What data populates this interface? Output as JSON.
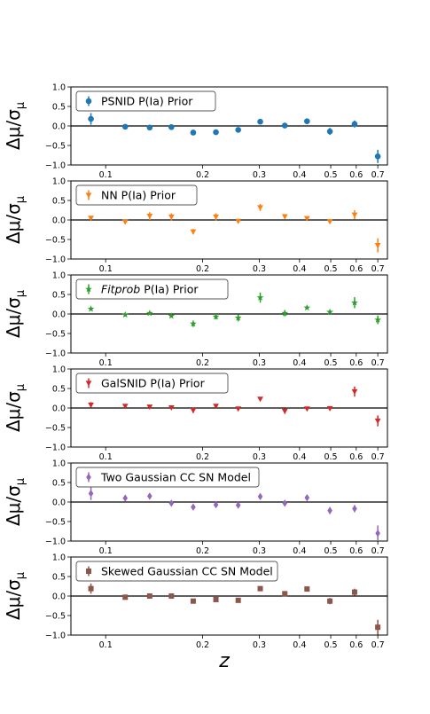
{
  "chart_data": {
    "type": "scatter",
    "x_axis": {
      "label": "z",
      "scale": "log",
      "range": [
        0.078,
        0.75
      ],
      "tick_values": [
        0.1,
        0.2,
        0.3,
        0.4,
        0.5,
        0.6,
        0.7
      ],
      "tick_labels": [
        "0.1",
        "0.2",
        "0.3",
        "0.4",
        "0.5",
        "0.6",
        "0.7"
      ]
    },
    "y_axis": {
      "label": "Δμ/σ_μ",
      "label_main": "Δμ/σ",
      "label_sub": "μ",
      "range": [
        -1.0,
        1.0
      ],
      "tick_values": [
        1.0,
        0.5,
        0.0,
        -0.5,
        -1.0
      ],
      "tick_labels": [
        "1.0",
        "0.5",
        "0.0",
        "−0.5",
        "−1.0"
      ]
    },
    "reference_line": 0.0,
    "x": [
      0.09,
      0.115,
      0.137,
      0.16,
      0.187,
      0.22,
      0.258,
      0.302,
      0.36,
      0.422,
      0.497,
      0.593,
      0.7
    ],
    "panels": [
      {
        "legend_label": "PSNID P(Ia) Prior",
        "legend_italic": "",
        "legend_rest": "",
        "color": "#1f77b4",
        "marker": "circle",
        "y": [
          0.18,
          -0.02,
          -0.04,
          -0.03,
          -0.17,
          -0.16,
          -0.1,
          0.11,
          0.01,
          0.12,
          -0.14,
          0.05,
          -0.78
        ],
        "err": [
          0.15,
          0.04,
          0.04,
          0.05,
          0.04,
          0.04,
          0.05,
          0.04,
          0.04,
          0.04,
          0.09,
          0.09,
          0.17
        ]
      },
      {
        "legend_label": "NN P(Ia) Prior",
        "legend_italic": "",
        "legend_rest": "",
        "color": "#ff7f0e",
        "marker": "triangle-down",
        "y": [
          0.05,
          -0.05,
          0.1,
          0.08,
          -0.3,
          0.08,
          -0.03,
          0.32,
          0.09,
          0.04,
          -0.04,
          0.13,
          -0.65
        ],
        "err": [
          0.04,
          0.04,
          0.1,
          0.09,
          0.07,
          0.09,
          0.05,
          0.09,
          0.06,
          0.03,
          0.03,
          0.12,
          0.18
        ]
      },
      {
        "legend_label": "",
        "legend_italic": "Fitprob",
        "legend_rest": " P(Ia) Prior",
        "color": "#2ca02c",
        "marker": "star",
        "y": [
          0.13,
          -0.02,
          0.02,
          -0.05,
          -0.25,
          -0.07,
          -0.1,
          0.42,
          0.02,
          0.16,
          0.05,
          0.29,
          -0.15
        ],
        "err": [
          0.04,
          0.04,
          0.04,
          0.04,
          0.08,
          0.07,
          0.09,
          0.13,
          0.08,
          0.03,
          0.04,
          0.14,
          0.11
        ]
      },
      {
        "legend_label": "GalSNID P(Ia) Prior",
        "legend_italic": "",
        "legend_rest": "",
        "color": "#d62728",
        "marker": "triangle-down",
        "y": [
          0.08,
          0.05,
          0.03,
          0.01,
          -0.06,
          0.05,
          -0.02,
          0.23,
          -0.08,
          -0.02,
          -0.01,
          0.42,
          -0.33
        ],
        "err": [
          0.07,
          0.04,
          0.04,
          0.04,
          0.07,
          0.04,
          0.05,
          0.05,
          0.07,
          0.04,
          0.03,
          0.13,
          0.14
        ]
      },
      {
        "legend_label": "Two Gaussian CC SN Model",
        "legend_italic": "",
        "legend_rest": "",
        "color": "#9467bd",
        "marker": "diamond",
        "y": [
          0.22,
          0.1,
          0.15,
          -0.03,
          -0.13,
          -0.07,
          -0.08,
          0.14,
          -0.03,
          0.11,
          -0.22,
          -0.17,
          -0.8
        ],
        "err": [
          0.17,
          0.07,
          0.07,
          0.05,
          0.05,
          0.04,
          0.05,
          0.07,
          0.05,
          0.07,
          0.09,
          0.09,
          0.2
        ]
      },
      {
        "legend_label": "Skewed Gaussian CC SN Model",
        "legend_italic": "",
        "legend_rest": "",
        "color": "#8c564b",
        "marker": "square",
        "y": [
          0.19,
          -0.03,
          0.0,
          0.0,
          -0.13,
          -0.09,
          -0.11,
          0.19,
          0.06,
          0.18,
          -0.13,
          0.1,
          -0.8
        ],
        "err": [
          0.13,
          0.04,
          0.03,
          0.03,
          0.04,
          0.04,
          0.05,
          0.04,
          0.04,
          0.03,
          0.08,
          0.09,
          0.19
        ]
      }
    ]
  }
}
